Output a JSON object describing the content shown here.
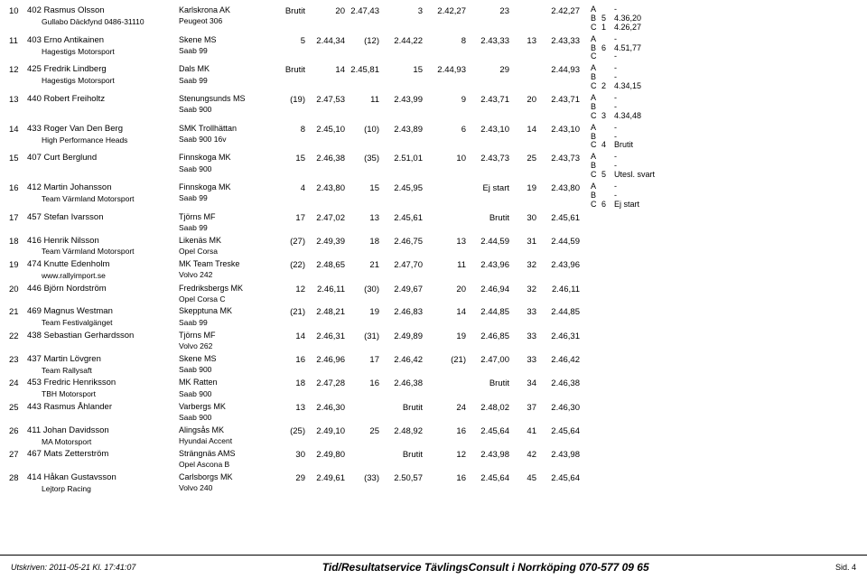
{
  "footer": {
    "left": "Utskriven: 2011-05-21 Kl. 17:41:07",
    "center": "Tid/Resultatservice TävlingsConsult i Norrköping 070-577 09 65",
    "right": "Sid. 4"
  },
  "rows": [
    {
      "pos": "10",
      "num": "402",
      "name": "Rasmus Olsson",
      "team": "Gullabo Däckfynd 0486-31110",
      "club": "Karlskrona AK",
      "car": "Peugeot 306",
      "c1": "Brutit",
      "c2": "20",
      "c3": "2.47,43",
      "c4": "3",
      "c5": "2.42,27",
      "c6": "23",
      "c7": "",
      "c8": "2.42,27",
      "side": [
        [
          "A",
          "",
          "-"
        ],
        [
          "B",
          "5",
          "4.36,20"
        ],
        [
          "C",
          "1",
          "4.26,27"
        ]
      ]
    },
    {
      "pos": "11",
      "num": "403",
      "name": "Erno Antikainen",
      "team": "Hagestigs Motorsport",
      "club": "Skene MS",
      "car": "Saab 99",
      "c1": "5",
      "c2": "2.44,34",
      "c3": "(12)",
      "c4": "2.44,22",
      "c5": "8",
      "c6": "2.43,33",
      "c7": "13",
      "c8": "2.43,33",
      "side": [
        [
          "A",
          "",
          "-"
        ],
        [
          "B",
          "6",
          "4.51,77"
        ],
        [
          "C",
          "",
          "-"
        ]
      ]
    },
    {
      "pos": "12",
      "num": "425",
      "name": "Fredrik Lindberg",
      "team": "Hagestigs Motorsport",
      "club": "Dals MK",
      "car": "Saab 99",
      "c1": "Brutit",
      "c2": "14",
      "c3": "2.45,81",
      "c4": "15",
      "c5": "2.44,93",
      "c6": "29",
      "c7": "",
      "c8": "2.44,93",
      "side": [
        [
          "A",
          "",
          "-"
        ],
        [
          "B",
          "",
          "-"
        ],
        [
          "C",
          "2",
          "4.34,15"
        ]
      ]
    },
    {
      "pos": "13",
      "num": "440",
      "name": "Robert Freiholtz",
      "team": "",
      "club": "Stenungsunds MS",
      "car": "Saab 900",
      "c1": "(19)",
      "c2": "2.47,53",
      "c3": "11",
      "c4": "2.43,99",
      "c5": "9",
      "c6": "2.43,71",
      "c7": "20",
      "c8": "2.43,71",
      "side": [
        [
          "A",
          "",
          "-"
        ],
        [
          "B",
          "",
          "-"
        ],
        [
          "C",
          "3",
          "4.34,48"
        ]
      ]
    },
    {
      "pos": "14",
      "num": "433",
      "name": "Roger Van Den Berg",
      "team": "High Performance Heads",
      "club": "SMK Trollhättan",
      "car": "Saab 900 16v",
      "c1": "8",
      "c2": "2.45,10",
      "c3": "(10)",
      "c4": "2.43,89",
      "c5": "6",
      "c6": "2.43,10",
      "c7": "14",
      "c8": "2.43,10",
      "side": [
        [
          "A",
          "",
          "-"
        ],
        [
          "B",
          "",
          "-"
        ],
        [
          "C",
          "4",
          "Brutit"
        ]
      ]
    },
    {
      "pos": "15",
      "num": "407",
      "name": "Curt Berglund",
      "team": "",
      "club": "Finnskoga MK",
      "car": "Saab 900",
      "c1": "15",
      "c2": "2.46,38",
      "c3": "(35)",
      "c4": "2.51,01",
      "c5": "10",
      "c6": "2.43,73",
      "c7": "25",
      "c8": "2.43,73",
      "side": [
        [
          "A",
          "",
          "-"
        ],
        [
          "B",
          "",
          "-"
        ],
        [
          "C",
          "5",
          "Utesl. svart"
        ]
      ]
    },
    {
      "pos": "16",
      "num": "412",
      "name": "Martin Johansson",
      "team": "Team Värmland Motorsport",
      "club": "Finnskoga MK",
      "car": "Saab 99",
      "c1": "4",
      "c2": "2.43,80",
      "c3": "15",
      "c4": "2.45,95",
      "c5": "",
      "c6": "Ej start",
      "c7": "19",
      "c8": "2.43,80",
      "side": [
        [
          "A",
          "",
          "-"
        ],
        [
          "B",
          "",
          "-"
        ],
        [
          "C",
          "6",
          "Ej start"
        ]
      ]
    },
    {
      "pos": "17",
      "num": "457",
      "name": "Stefan Ivarsson",
      "team": "",
      "club": "Tjörns MF",
      "car": "Saab 99",
      "c1": "17",
      "c2": "2.47,02",
      "c3": "13",
      "c4": "2.45,61",
      "c5": "",
      "c6": "Brutit",
      "c7": "30",
      "c8": "2.45,61",
      "side": []
    },
    {
      "pos": "18",
      "num": "416",
      "name": "Henrik Nilsson",
      "team": "Team Värmland Motorsport",
      "club": "Likenäs MK",
      "car": "Opel Corsa",
      "c1": "(27)",
      "c2": "2.49,39",
      "c3": "18",
      "c4": "2.46,75",
      "c5": "13",
      "c6": "2.44,59",
      "c7": "31",
      "c8": "2.44,59",
      "side": []
    },
    {
      "pos": "19",
      "num": "474",
      "name": "Knutte Edenholm",
      "team": "www.rallyimport.se",
      "club": "MK Team Treske",
      "car": "Volvo 242",
      "c1": "(22)",
      "c2": "2.48,65",
      "c3": "21",
      "c4": "2.47,70",
      "c5": "11",
      "c6": "2.43,96",
      "c7": "32",
      "c8": "2.43,96",
      "side": []
    },
    {
      "pos": "20",
      "num": "446",
      "name": "Björn Nordström",
      "team": "",
      "club": "Fredriksbergs MK",
      "car": "Opel Corsa C",
      "c1": "12",
      "c2": "2.46,11",
      "c3": "(30)",
      "c4": "2.49,67",
      "c5": "20",
      "c6": "2.46,94",
      "c7": "32",
      "c8": "2.46,11",
      "side": []
    },
    {
      "pos": "21",
      "num": "469",
      "name": "Magnus Westman",
      "team": "Team Festivalgänget",
      "club": "Skepptuna MK",
      "car": "Saab 99",
      "c1": "(21)",
      "c2": "2.48,21",
      "c3": "19",
      "c4": "2.46,83",
      "c5": "14",
      "c6": "2.44,85",
      "c7": "33",
      "c8": "2.44,85",
      "side": []
    },
    {
      "pos": "22",
      "num": "438",
      "name": "Sebastian Gerhardsson",
      "team": "",
      "club": "Tjörns MF",
      "car": "Volvo 262",
      "c1": "14",
      "c2": "2.46,31",
      "c3": "(31)",
      "c4": "2.49,89",
      "c5": "19",
      "c6": "2.46,85",
      "c7": "33",
      "c8": "2.46,31",
      "side": []
    },
    {
      "pos": "23",
      "num": "437",
      "name": "Martin Lövgren",
      "team": "Team Rallysaft",
      "club": "Skene MS",
      "car": "Saab 900",
      "c1": "16",
      "c2": "2.46,96",
      "c3": "17",
      "c4": "2.46,42",
      "c5": "(21)",
      "c6": "2.47,00",
      "c7": "33",
      "c8": "2.46,42",
      "side": []
    },
    {
      "pos": "24",
      "num": "453",
      "name": "Fredric Henriksson",
      "team": "TBH Motorsport",
      "club": "MK Ratten",
      "car": "Saab 900",
      "c1": "18",
      "c2": "2.47,28",
      "c3": "16",
      "c4": "2.46,38",
      "c5": "",
      "c6": "Brutit",
      "c7": "34",
      "c8": "2.46,38",
      "side": []
    },
    {
      "pos": "25",
      "num": "443",
      "name": "Rasmus Åhlander",
      "team": "",
      "club": "Varbergs MK",
      "car": "Saab 900",
      "c1": "13",
      "c2": "2.46,30",
      "c3": "",
      "c4": "Brutit",
      "c5": "24",
      "c6": "2.48,02",
      "c7": "37",
      "c8": "2.46,30",
      "side": []
    },
    {
      "pos": "26",
      "num": "411",
      "name": "Johan Davidsson",
      "team": "MA Motorsport",
      "club": "Alingsås MK",
      "car": "Hyundai Accent",
      "c1": "(25)",
      "c2": "2.49,10",
      "c3": "25",
      "c4": "2.48,92",
      "c5": "16",
      "c6": "2.45,64",
      "c7": "41",
      "c8": "2.45,64",
      "side": []
    },
    {
      "pos": "27",
      "num": "467",
      "name": "Mats Zetterström",
      "team": "",
      "club": "Strängnäs AMS",
      "car": "Opel Ascona B",
      "c1": "30",
      "c2": "2.49,80",
      "c3": "",
      "c4": "Brutit",
      "c5": "12",
      "c6": "2.43,98",
      "c7": "42",
      "c8": "2.43,98",
      "side": []
    },
    {
      "pos": "28",
      "num": "414",
      "name": "Håkan Gustavsson",
      "team": "Lejtorp Racing",
      "club": "Carlsborgs MK",
      "car": "Volvo 240",
      "c1": "29",
      "c2": "2.49,61",
      "c3": "(33)",
      "c4": "2.50,57",
      "c5": "16",
      "c6": "2.45,64",
      "c7": "45",
      "c8": "2.45,64",
      "side": []
    }
  ]
}
